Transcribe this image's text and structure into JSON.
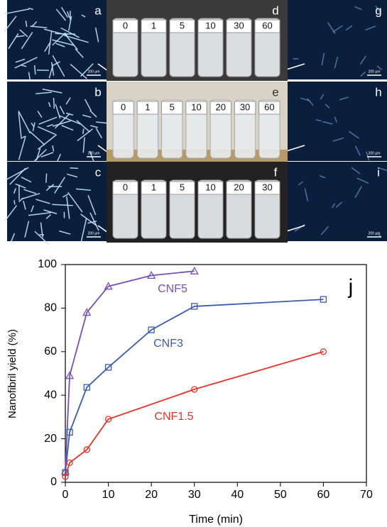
{
  "panels": {
    "micrograph_letters": [
      "a",
      "b",
      "c",
      "g",
      "h",
      "i"
    ],
    "scale_bar": "200 µm",
    "vial_panels": [
      {
        "letter": "d",
        "labels": [
          "0",
          "1",
          "5",
          "10",
          "30",
          "60"
        ]
      },
      {
        "letter": "e",
        "labels": [
          "0",
          "1",
          "5",
          "10",
          "20",
          "30",
          "60"
        ]
      },
      {
        "letter": "f",
        "labels": [
          "0",
          "1",
          "5",
          "10",
          "20",
          "30"
        ]
      }
    ]
  },
  "chart_data": {
    "type": "line",
    "annotation": "j",
    "x_label": "Time (min)",
    "y_label": "Nanofibril yield (%)",
    "xlim": [
      0,
      70
    ],
    "xticks": [
      0,
      10,
      20,
      30,
      40,
      50,
      60,
      70
    ],
    "ylim": [
      0,
      100
    ],
    "yticks": [
      0,
      20,
      40,
      60,
      80,
      100
    ],
    "series": [
      {
        "name": "CNF5",
        "color": "#7a4fb5",
        "marker": "triangle",
        "x": [
          0,
          1,
          5,
          10,
          20,
          30
        ],
        "values": [
          5,
          49,
          78,
          90,
          95,
          97
        ]
      },
      {
        "name": "CNF3",
        "color": "#3a5cae",
        "marker": "square",
        "x": [
          0,
          1,
          5,
          10,
          20,
          30,
          60
        ],
        "values": [
          4.5,
          23,
          43.6,
          52.8,
          70,
          80.8,
          84
        ]
      },
      {
        "name": "CNF1.5",
        "color": "#e5332a",
        "marker": "circle",
        "x": [
          0,
          1,
          5,
          10,
          30,
          60
        ],
        "values": [
          2.6,
          9,
          15,
          29,
          42.7,
          60
        ]
      }
    ]
  }
}
